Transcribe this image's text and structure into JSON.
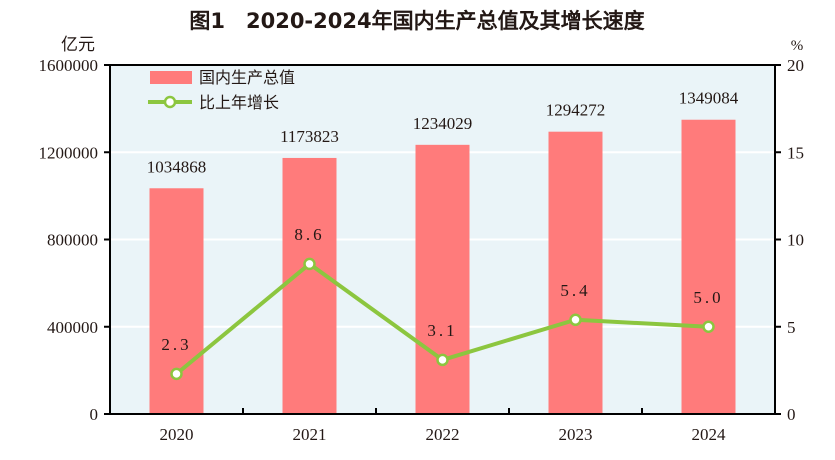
{
  "chart_data": {
    "type": "bar+line",
    "title": "图1　2020-2024年国内生产总值及其增长速度",
    "categories": [
      "2020",
      "2021",
      "2022",
      "2023",
      "2024"
    ],
    "series": [
      {
        "name": "国内生产总值",
        "type": "bar",
        "axis": "left",
        "values": [
          1034868,
          1173823,
          1234029,
          1294272,
          1349084
        ],
        "color": "#ff7b7b"
      },
      {
        "name": "比上年增长",
        "type": "line",
        "axis": "right",
        "values": [
          2.3,
          8.6,
          3.1,
          5.4,
          5.0
        ],
        "labels": [
          "2.3",
          "8.6",
          "3.1",
          "5.4",
          "5.0"
        ],
        "color": "#8cc63f"
      }
    ],
    "ylabel_left": "亿元",
    "ylabel_right": "%",
    "ylim_left": [
      0,
      1600000
    ],
    "ylim_right": [
      0,
      20
    ],
    "yticks_left": [
      "0",
      "400000",
      "800000",
      "1200000",
      "1600000"
    ],
    "yticks_right": [
      "0",
      "5",
      "10",
      "15",
      "20"
    ],
    "grid": true,
    "legend_position": "top-left",
    "background_color": "#eaf4f8"
  }
}
